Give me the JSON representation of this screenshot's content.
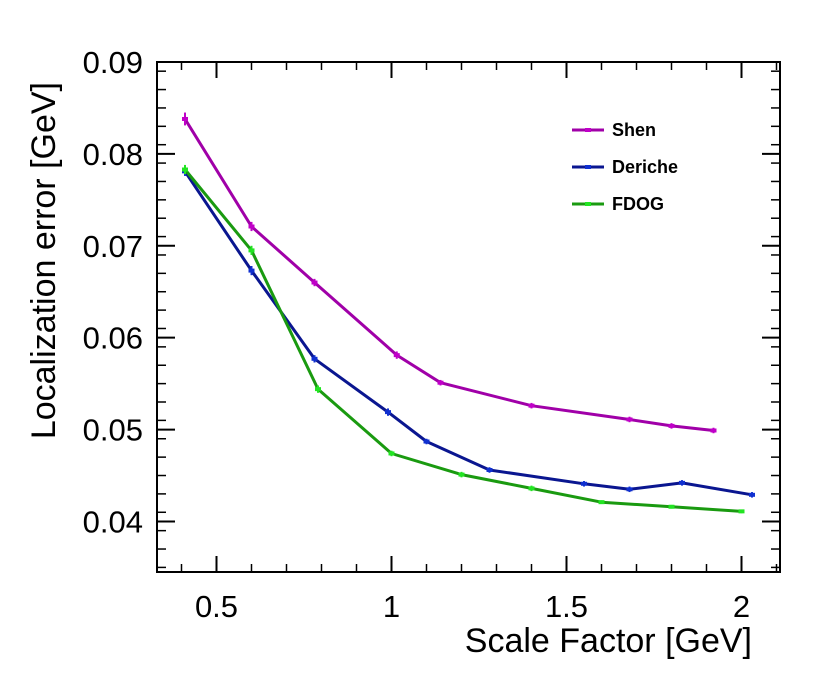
{
  "chart_data": {
    "type": "line",
    "title": "",
    "xlabel": "Scale Factor [GeV]",
    "ylabel": "Localization error [GeV]",
    "xlim": [
      0.33,
      2.11
    ],
    "ylim": [
      0.0345,
      0.09
    ],
    "xticks": [
      0.5,
      1,
      1.5,
      2
    ],
    "xtick_labels": [
      "0.5",
      "1",
      "1.5",
      "2"
    ],
    "yticks": [
      0.04,
      0.05,
      0.06,
      0.07,
      0.08,
      0.09
    ],
    "ytick_labels": [
      "0.04",
      "0.05",
      "0.06",
      "0.07",
      "0.08",
      "0.09"
    ],
    "grid": false,
    "legend_position": "top-right",
    "series": [
      {
        "name": "Shen",
        "color": "#a000a8",
        "marker_color": "#c000c8",
        "x": [
          0.41,
          0.6,
          0.78,
          1.015,
          1.14,
          1.4,
          1.68,
          1.8,
          1.92
        ],
        "y": [
          0.0838,
          0.0721,
          0.066,
          0.0581,
          0.0551,
          0.0526,
          0.0511,
          0.0504,
          0.0499
        ],
        "yerr": [
          0.0007,
          0.0005,
          0.0004,
          0.0004,
          0.0003,
          0.0003,
          0.0003,
          0.0003,
          0.0003
        ]
      },
      {
        "name": "Deriche",
        "color": "#0a1690",
        "marker_color": "#1030d0",
        "x": [
          0.41,
          0.6,
          0.78,
          0.99,
          1.1,
          1.28,
          1.55,
          1.68,
          1.83,
          2.03
        ],
        "y": [
          0.0781,
          0.0673,
          0.0577,
          0.0519,
          0.0487,
          0.0456,
          0.0441,
          0.0435,
          0.0442,
          0.0429
        ],
        "yerr": [
          0.0005,
          0.0005,
          0.0004,
          0.0004,
          0.0003,
          0.0003,
          0.0003,
          0.0003,
          0.0003,
          0.0003
        ]
      },
      {
        "name": "FDOG",
        "color": "#1a9a10",
        "marker_color": "#22e422",
        "x": [
          0.41,
          0.6,
          0.79,
          1.0,
          1.2,
          1.4,
          1.6,
          1.8,
          2.0
        ],
        "y": [
          0.0783,
          0.0695,
          0.0544,
          0.0474,
          0.0451,
          0.0436,
          0.0421,
          0.0416,
          0.0411
        ],
        "yerr": [
          0.0005,
          0.0005,
          0.0004,
          0.0003,
          0.0003,
          0.0003,
          0.0002,
          0.0002,
          0.0002
        ]
      }
    ]
  }
}
